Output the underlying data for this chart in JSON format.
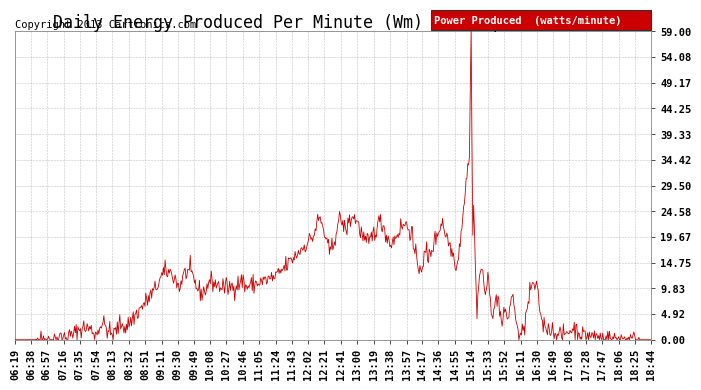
{
  "title": "Daily Energy Produced Per Minute (Wm)  Mon Apr 15  18:59",
  "copyright": "Copyright 2013 Cartronics.com",
  "legend_label": "Power Produced  (watts/minute)",
  "legend_bg": "#cc0000",
  "legend_text_color": "#ffffff",
  "line_color": "#cc0000",
  "background_color": "#ffffff",
  "plot_bg": "#ffffff",
  "grid_color": "#999999",
  "yticks": [
    0.0,
    4.92,
    9.83,
    14.75,
    19.67,
    24.58,
    29.5,
    34.42,
    39.33,
    44.25,
    49.17,
    54.08,
    59.0
  ],
  "ymax": 59.0,
  "ymin": 0.0,
  "title_fontsize": 12,
  "copyright_fontsize": 7.5,
  "tick_fontsize": 7.5,
  "xtick_labels": [
    "06:19",
    "06:38",
    "06:57",
    "07:16",
    "07:35",
    "07:54",
    "08:13",
    "08:32",
    "08:51",
    "09:11",
    "09:30",
    "09:49",
    "10:08",
    "10:27",
    "10:46",
    "11:05",
    "11:24",
    "11:43",
    "12:02",
    "12:21",
    "12:41",
    "13:00",
    "13:19",
    "13:38",
    "13:57",
    "14:17",
    "14:36",
    "14:55",
    "15:14",
    "15:33",
    "15:52",
    "16:11",
    "16:30",
    "16:49",
    "17:08",
    "17:28",
    "17:47",
    "18:06",
    "18:25",
    "18:44"
  ],
  "n_points": 760,
  "random_seed": 42
}
